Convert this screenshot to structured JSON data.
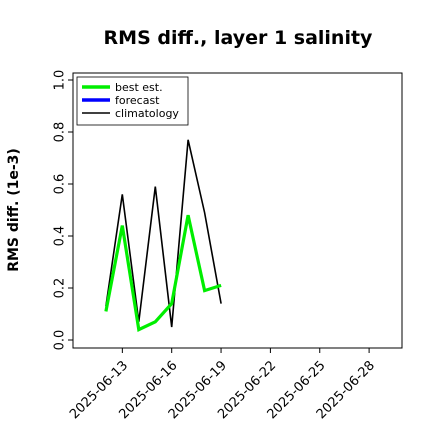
{
  "chart_data": {
    "type": "line",
    "title": "RMS diff., layer 1 salinity",
    "ylabel": "RMS diff. (1e-3)",
    "xlabel": "",
    "ylim": [
      0.0,
      1.0
    ],
    "yticks": [
      "0.0",
      "0.2",
      "0.4",
      "0.6",
      "0.8",
      "1.0"
    ],
    "xlim": [
      "2025-06-10",
      "2025-06-30"
    ],
    "xticks": [
      "2025-06-13",
      "2025-06-16",
      "2025-06-19",
      "2025-06-22",
      "2025-06-25",
      "2025-06-28"
    ],
    "highlighted_xtick": "2025-06-19",
    "highlight_color": "#2e8b2e",
    "legend_position": "upper-left",
    "grid": false,
    "series": [
      {
        "name": "best est.",
        "color": "#00ee00",
        "x": [
          "2025-06-12",
          "2025-06-13",
          "2025-06-14",
          "2025-06-15",
          "2025-06-16",
          "2025-06-17",
          "2025-06-18",
          "2025-06-19"
        ],
        "values": [
          0.11,
          0.44,
          0.04,
          0.07,
          0.14,
          0.48,
          0.19,
          0.21
        ]
      },
      {
        "name": "forecast",
        "color": "#0000ff",
        "x": [],
        "values": []
      },
      {
        "name": "climatology",
        "color": "#000000",
        "x": [
          "2025-06-12",
          "2025-06-13",
          "2025-06-14",
          "2025-06-15",
          "2025-06-16",
          "2025-06-17",
          "2025-06-18",
          "2025-06-19"
        ],
        "values": [
          0.13,
          0.56,
          0.07,
          0.59,
          0.05,
          0.77,
          0.49,
          0.14
        ]
      }
    ]
  }
}
